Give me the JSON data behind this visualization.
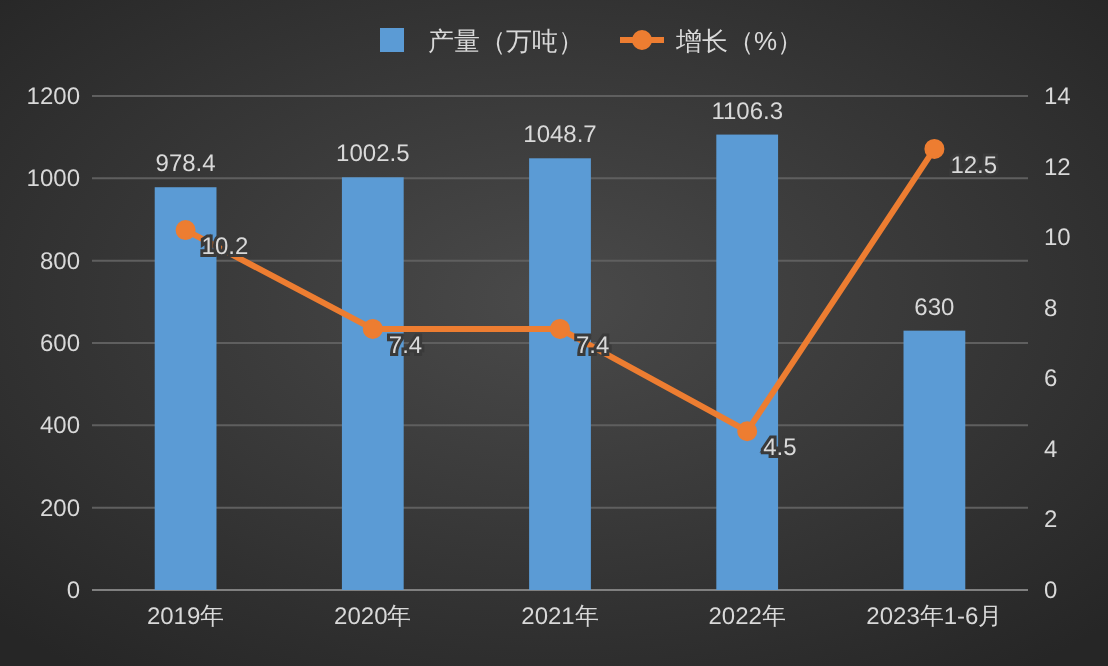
{
  "chart_data": {
    "type": "bar",
    "categories": [
      "2019年",
      "2020年",
      "2021年",
      "2022年",
      "2023年1-6月"
    ],
    "series": [
      {
        "name": "产量（万吨）",
        "color": "#5b9bd5",
        "values": [
          978.4,
          1002.5,
          1048.7,
          1106.3,
          630
        ]
      },
      {
        "name": "增长（%）",
        "type": "line",
        "axis": "y2",
        "color": "#ed7d31",
        "marker": "circle",
        "values": [
          10.2,
          7.4,
          7.4,
          4.5,
          12.5
        ]
      }
    ],
    "ylim": [
      0,
      1200
    ],
    "yticks": [
      0,
      200,
      400,
      600,
      800,
      1000,
      1200
    ],
    "y2lim": [
      0,
      14
    ],
    "y2ticks": [
      0,
      2,
      4,
      6,
      8,
      10,
      12,
      14
    ],
    "grid": "y",
    "legend": "top",
    "data_labels": true
  }
}
